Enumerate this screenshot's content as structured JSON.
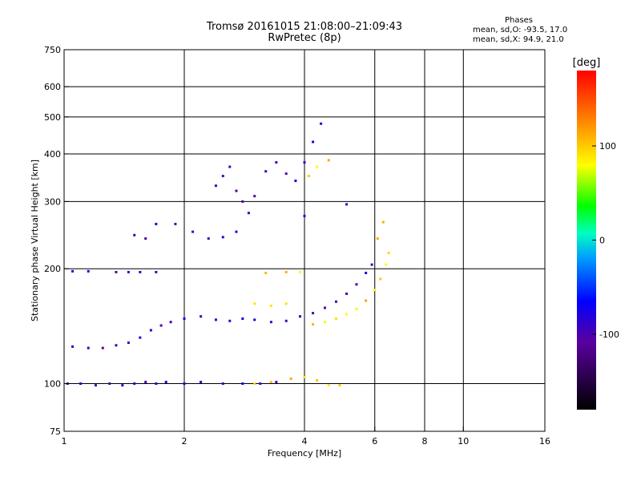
{
  "header": {
    "title_line1": "Tromsø 20161015 21:08:00–21:09:43",
    "title_line2": "RwPretec (8p)"
  },
  "phases_info": {
    "heading": "Phases",
    "o_line": "mean, sd,O:  -93.5, 17.0",
    "x_line": "mean, sd,X:  94.9, 21.0"
  },
  "colorbar": {
    "label": "[deg]",
    "ticks": [
      {
        "v": 100,
        "t": "100"
      },
      {
        "v": 0,
        "t": "0"
      },
      {
        "v": -100,
        "t": "-100"
      }
    ],
    "range": [
      -180,
      180
    ]
  },
  "chart_data": {
    "type": "scatter",
    "title": "Tromsø 20161015 21:08:00–21:09:43",
    "subtitle": "RwPretec (8p)",
    "xlabel": "Frequency [MHz]",
    "ylabel": "Stationary phase Virtual Height [km]",
    "xscale": "log",
    "yscale": "log",
    "xlim": [
      1,
      16
    ],
    "ylim": [
      75,
      750
    ],
    "x_ticks": [
      1,
      2,
      4,
      6,
      8,
      10,
      16
    ],
    "y_ticks": [
      75,
      100,
      200,
      300,
      400,
      500,
      600,
      750
    ],
    "grid_x": [
      2,
      4,
      6,
      8,
      10
    ],
    "grid_y": [
      100,
      200,
      300,
      400,
      500,
      600
    ],
    "color_scale": "phase in degrees, -180 (black) to 180 (red)",
    "series": [
      {
        "name": "O",
        "points": [
          [
            1.02,
            100
          ],
          [
            1.1,
            100
          ],
          [
            1.2,
            99
          ],
          [
            1.3,
            100
          ],
          [
            1.4,
            99
          ],
          [
            1.5,
            100
          ],
          [
            1.6,
            101
          ],
          [
            1.7,
            100
          ],
          [
            1.8,
            101
          ],
          [
            2.0,
            100
          ],
          [
            2.2,
            101
          ],
          [
            2.5,
            100
          ],
          [
            2.8,
            100
          ],
          [
            3.1,
            100
          ],
          [
            3.4,
            101
          ],
          [
            1.05,
            125
          ],
          [
            1.15,
            124
          ],
          [
            1.25,
            124
          ],
          [
            1.35,
            126
          ],
          [
            1.45,
            128
          ],
          [
            1.55,
            132
          ],
          [
            1.65,
            138
          ],
          [
            1.75,
            142
          ],
          [
            1.85,
            145
          ],
          [
            2.0,
            148
          ],
          [
            2.2,
            150
          ],
          [
            2.4,
            147
          ],
          [
            2.6,
            146
          ],
          [
            2.8,
            148
          ],
          [
            3.0,
            147
          ],
          [
            3.3,
            145
          ],
          [
            3.6,
            146
          ],
          [
            3.9,
            150
          ],
          [
            4.2,
            153
          ],
          [
            4.5,
            158
          ],
          [
            4.8,
            164
          ],
          [
            5.1,
            172
          ],
          [
            5.4,
            182
          ],
          [
            5.7,
            195
          ],
          [
            5.9,
            205
          ],
          [
            1.05,
            197
          ],
          [
            1.15,
            197
          ],
          [
            1.35,
            196
          ],
          [
            1.45,
            196
          ],
          [
            1.55,
            196
          ],
          [
            1.7,
            196
          ],
          [
            1.5,
            245
          ],
          [
            1.6,
            240
          ],
          [
            1.7,
            262
          ],
          [
            1.9,
            262
          ],
          [
            2.1,
            250
          ],
          [
            2.3,
            240
          ],
          [
            2.5,
            242
          ],
          [
            2.7,
            250
          ],
          [
            2.4,
            330
          ],
          [
            2.5,
            350
          ],
          [
            2.6,
            370
          ],
          [
            2.7,
            320
          ],
          [
            2.8,
            300
          ],
          [
            2.9,
            280
          ],
          [
            3.0,
            310
          ],
          [
            3.2,
            360
          ],
          [
            3.4,
            380
          ],
          [
            3.6,
            355
          ],
          [
            3.8,
            340
          ],
          [
            4.0,
            380
          ],
          [
            4.2,
            430
          ],
          [
            4.4,
            480
          ],
          [
            4.0,
            275
          ],
          [
            5.1,
            295
          ]
        ]
      },
      {
        "name": "X",
        "points": [
          [
            3.0,
            100
          ],
          [
            3.3,
            101
          ],
          [
            3.7,
            103
          ],
          [
            4.0,
            104
          ],
          [
            4.3,
            102
          ],
          [
            4.6,
            99
          ],
          [
            4.9,
            99
          ],
          [
            3.0,
            162
          ],
          [
            3.3,
            160
          ],
          [
            3.6,
            162
          ],
          [
            3.2,
            195
          ],
          [
            3.6,
            196
          ],
          [
            3.9,
            196
          ],
          [
            4.2,
            143
          ],
          [
            4.5,
            145
          ],
          [
            4.8,
            148
          ],
          [
            5.1,
            152
          ],
          [
            5.4,
            157
          ],
          [
            5.7,
            165
          ],
          [
            6.0,
            176
          ],
          [
            6.2,
            188
          ],
          [
            6.4,
            205
          ],
          [
            6.5,
            220
          ],
          [
            4.1,
            350
          ],
          [
            4.3,
            370
          ],
          [
            4.6,
            385
          ],
          [
            6.3,
            265
          ],
          [
            6.1,
            240
          ]
        ]
      }
    ]
  }
}
